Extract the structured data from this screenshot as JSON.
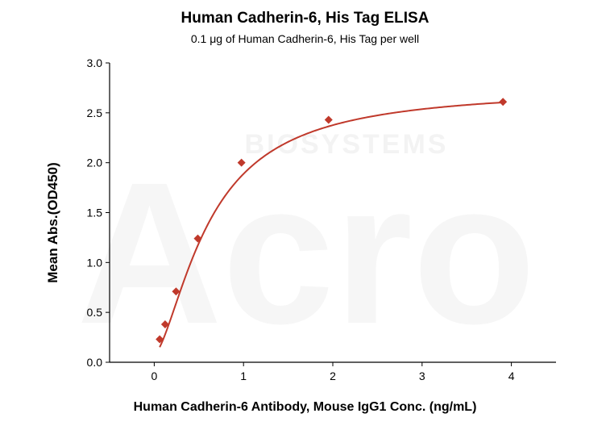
{
  "colors": {
    "series": "#c0392b",
    "axis": "#000000",
    "watermark": "#f2f2f2"
  },
  "chart_data": {
    "type": "scatter",
    "title": "Human Cadherin-6, His Tag ELISA",
    "subtitle": "0.1 μg of Human Cadherin-6, His Tag per well",
    "xlabel": "Human Cadherin-6 Antibody, Mouse IgG1 Conc. (ng/mL)",
    "ylabel": "Mean Abs.(OD450)",
    "xlim": [
      -0.5,
      4.5
    ],
    "ylim": [
      0,
      3.0
    ],
    "xticks": [
      0,
      1,
      2,
      3,
      4
    ],
    "yticks": [
      0.0,
      0.5,
      1.0,
      1.5,
      2.0,
      2.5,
      3.0
    ],
    "ytick_labels": [
      "0.0",
      "0.5",
      "1.0",
      "1.5",
      "2.0",
      "2.5",
      "3.0"
    ],
    "grid": false,
    "series": [
      {
        "marker": "diamond",
        "x": [
          0.061,
          0.122,
          0.244,
          0.488,
          0.977,
          1.953,
          3.906
        ],
        "y": [
          0.23,
          0.38,
          0.71,
          1.24,
          2.0,
          2.43,
          2.61
        ],
        "fit_curve": true
      }
    ]
  },
  "watermark": {
    "text": "BIOSYSTEMS",
    "logo": "Acro"
  }
}
